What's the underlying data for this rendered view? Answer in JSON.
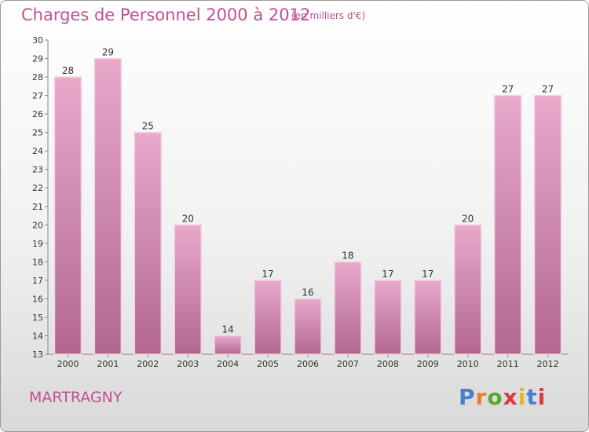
{
  "chart_data": {
    "type": "bar",
    "title": "Charges de Personnel 2000 à 2012",
    "subtitle": "(en milliers d'€)",
    "categories": [
      "2000",
      "2001",
      "2002",
      "2003",
      "2004",
      "2005",
      "2006",
      "2007",
      "2008",
      "2009",
      "2010",
      "2011",
      "2012"
    ],
    "values": [
      28,
      29,
      25,
      20,
      14,
      17,
      16,
      18,
      17,
      17,
      20,
      27,
      27
    ],
    "xlabel": "",
    "ylabel": "",
    "ylim": [
      13,
      30
    ],
    "yticks": [
      13,
      14,
      15,
      16,
      17,
      18,
      19,
      20,
      21,
      22,
      23,
      24,
      25,
      26,
      27,
      28,
      29,
      30
    ],
    "grid": false,
    "colors": {
      "bar_top": "#e8a9cb",
      "bar_bottom": "#b2678f",
      "bar_edge": "#f4d3e4",
      "text": "#333333",
      "accent": "#c2508f"
    }
  },
  "footer": {
    "commune": "MARTRAGNY",
    "logo_text": "Proxiti",
    "logo_colors": [
      "#4a7fd0",
      "#e8802a",
      "#5aa832",
      "#d83b3b",
      "#e8b52a",
      "#4a7fd0",
      "#d83b3b"
    ]
  }
}
